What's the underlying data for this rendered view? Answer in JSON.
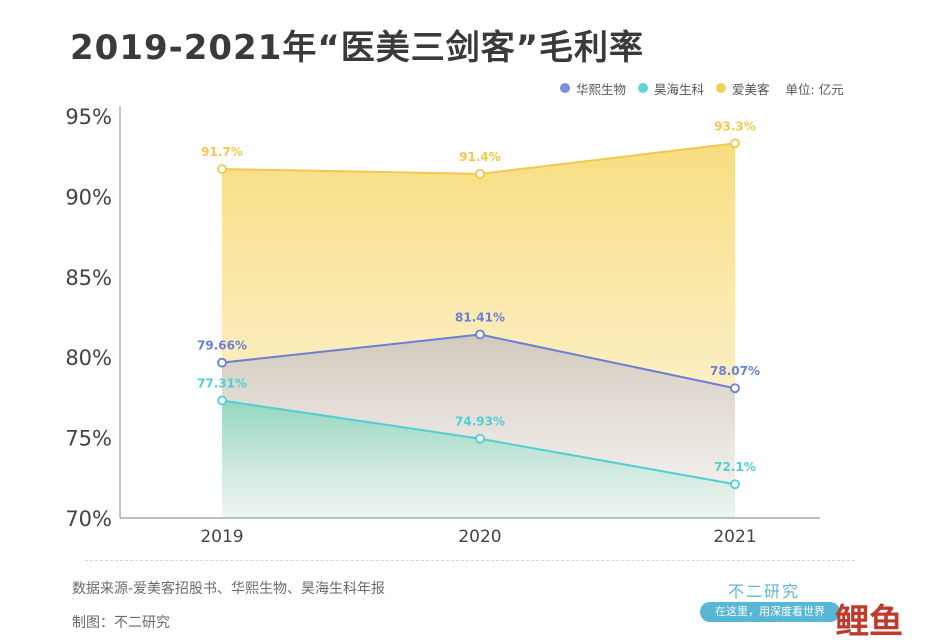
{
  "title": "2019-2021年“医美三剑客”毛利率",
  "legend": {
    "items": [
      {
        "label": "华熙生物",
        "color": "#7b8fd9"
      },
      {
        "label": "昊海生科",
        "color": "#5fd3dc"
      },
      {
        "label": "爱美客",
        "color": "#f2cf55"
      }
    ],
    "unit": "单位: 亿元"
  },
  "chart_data": {
    "type": "area",
    "categories": [
      "2019",
      "2020",
      "2021"
    ],
    "series": [
      {
        "name": "爱美客",
        "values": [
          91.7,
          91.4,
          93.3
        ],
        "labels": [
          "91.7%",
          "91.4%",
          "93.3%"
        ],
        "color": "#f0c94e"
      },
      {
        "name": "华熙生物",
        "values": [
          79.66,
          81.41,
          78.07
        ],
        "labels": [
          "79.66%",
          "81.41%",
          "78.07%"
        ],
        "color": "#6a7fd6"
      },
      {
        "name": "昊海生科",
        "values": [
          77.31,
          74.93,
          72.1
        ],
        "labels": [
          "77.31%",
          "74.93%",
          "72.1%"
        ],
        "color": "#4fcfd6"
      }
    ],
    "yticks": [
      "70%",
      "75%",
      "80%",
      "85%",
      "90%",
      "95%"
    ],
    "ylim": [
      70,
      95
    ],
    "grid": false,
    "legend_position": "top-right"
  },
  "footer": {
    "source": "数据来源-爱美客招股书、华熙生物、昊海生科年报",
    "maker": "制图：不二研究"
  },
  "brand": {
    "name": "不二研究",
    "slogan": "在这里，用深度看世界",
    "corner": "鲤鱼"
  }
}
